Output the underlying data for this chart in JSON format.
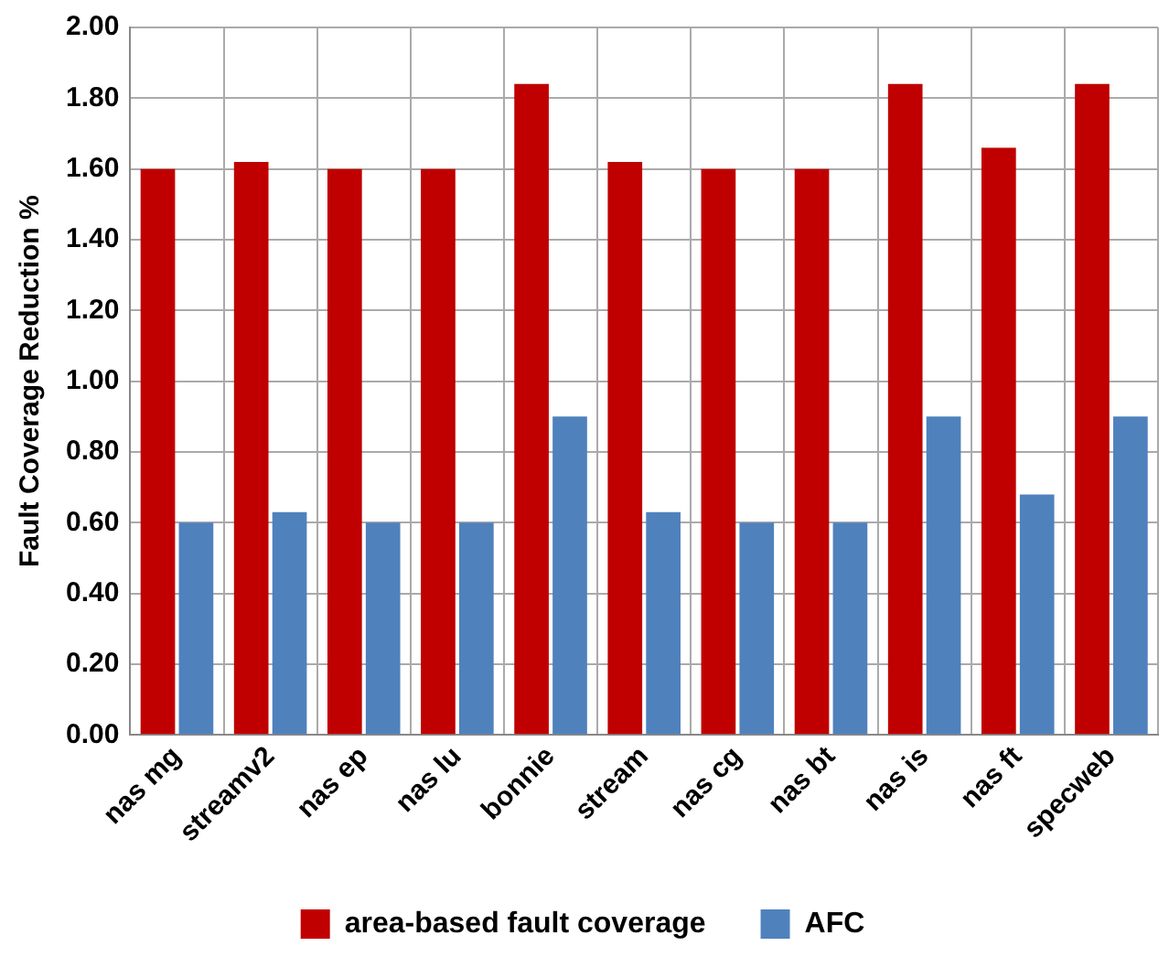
{
  "chart_data": {
    "type": "bar",
    "ylabel": "Fault Coverage Reduction %",
    "categories": [
      "nas mg",
      "streamv2",
      "nas ep",
      "nas lu",
      "bonnie",
      "stream",
      "nas cg",
      "nas bt",
      "nas is",
      "nas ft",
      "specweb"
    ],
    "series": [
      {
        "name": "area-based fault coverage",
        "color": "#c00000",
        "values": [
          1.6,
          1.62,
          1.6,
          1.6,
          1.84,
          1.62,
          1.6,
          1.6,
          1.84,
          1.66,
          1.84
        ]
      },
      {
        "name": "AFC",
        "color": "#4f81bd",
        "values": [
          0.6,
          0.63,
          0.6,
          0.6,
          0.9,
          0.63,
          0.6,
          0.6,
          0.9,
          0.68,
          0.9
        ]
      }
    ],
    "ylim": [
      0,
      2
    ],
    "yticks": [
      {
        "value": 0,
        "label": "0.00"
      },
      {
        "value": 0.2,
        "label": "0.20"
      },
      {
        "value": 0.4,
        "label": "0.40"
      },
      {
        "value": 0.6,
        "label": "0.60"
      },
      {
        "value": 0.8,
        "label": "0.80"
      },
      {
        "value": 1,
        "label": "1.00"
      },
      {
        "value": 1.2,
        "label": "1.20"
      },
      {
        "value": 1.4,
        "label": "1.40"
      },
      {
        "value": 1.6,
        "label": "1.60"
      },
      {
        "value": 1.8,
        "label": "1.80"
      },
      {
        "value": 2,
        "label": "2.00"
      }
    ],
    "grid": true,
    "legend": "bottom"
  }
}
